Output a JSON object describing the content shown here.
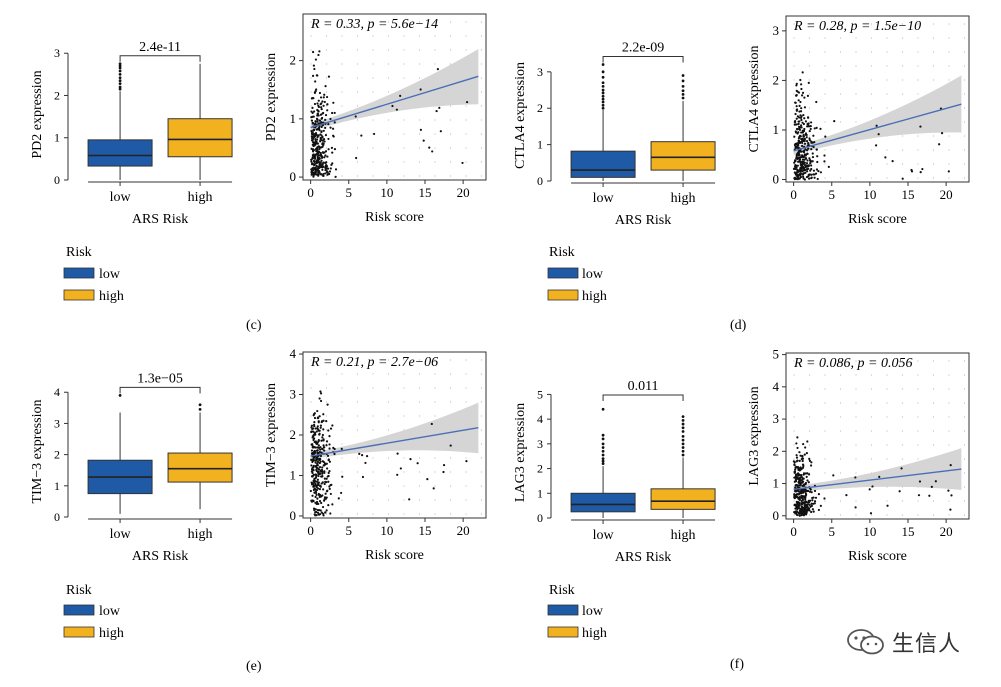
{
  "figure": {
    "panel_labels": {
      "c": "(c)",
      "d": "(d)",
      "e": "(e)",
      "f": "(f)"
    },
    "legend": {
      "title": "Risk",
      "items": [
        {
          "label": "low",
          "color": "#1f5aa6"
        },
        {
          "label": "high",
          "color": "#f2b21f"
        }
      ]
    },
    "watermark": "生信人"
  },
  "chart_data": [
    {
      "id": "c-box",
      "type": "box",
      "ylabel": "PD2 expression",
      "xlabel": "ARS Risk",
      "categories": [
        "low",
        "high"
      ],
      "pvalue": "2.4e-11",
      "ylim": [
        0,
        3.1
      ],
      "yticks": [
        0,
        1,
        2,
        3
      ],
      "boxes": [
        {
          "name": "low",
          "min": 0.0,
          "q1": 0.33,
          "median": 0.58,
          "q3": 0.95,
          "max": 2.1,
          "outliers": [
            2.15,
            2.2,
            2.28,
            2.35,
            2.42,
            2.5,
            2.58,
            2.65,
            2.7,
            2.75
          ],
          "color": "#1f5aa6"
        },
        {
          "name": "high",
          "min": 0.0,
          "q1": 0.55,
          "median": 0.96,
          "q3": 1.45,
          "max": 2.75,
          "outliers": [],
          "color": "#f2b21f"
        }
      ]
    },
    {
      "id": "c-scatter",
      "type": "scatter",
      "ylabel": "PD2 expression",
      "xlabel": "Risk score",
      "annotation": "R = 0.33, p = 5.6e−14",
      "xlim": [
        -1,
        23
      ],
      "ylim": [
        -0.05,
        2.8
      ],
      "xticks": [
        0,
        5,
        10,
        15,
        20
      ],
      "yticks": [
        0,
        1,
        2
      ],
      "fit": {
        "x0": 0,
        "y0": 0.85,
        "x1": 22,
        "y1": 1.73,
        "band_lo_end": 1.25,
        "band_hi_end": 2.2,
        "band_start": 0.06
      },
      "seed": 11,
      "cluster": {
        "n": 360,
        "ymean": 0.55,
        "ysd": 0.55,
        "ymax": 2.7
      }
    },
    {
      "id": "d-box",
      "type": "box",
      "ylabel": "CTLA4 expression",
      "xlabel": "ARS Risk",
      "categories": [
        "low",
        "high"
      ],
      "pvalue": "2.2e-09",
      "ylim": [
        0,
        3.6
      ],
      "yticks": [
        0,
        1,
        2,
        3
      ],
      "boxes": [
        {
          "name": "low",
          "min": 0.0,
          "q1": 0.1,
          "median": 0.3,
          "q3": 0.82,
          "max": 1.95,
          "outliers": [
            2.0,
            2.08,
            2.17,
            2.25,
            2.33,
            2.42,
            2.5,
            2.6,
            2.7,
            2.85,
            3.0,
            3.2
          ],
          "color": "#1f5aa6"
        },
        {
          "name": "high",
          "min": 0.0,
          "q1": 0.3,
          "median": 0.65,
          "q3": 1.08,
          "max": 2.2,
          "outliers": [
            2.28,
            2.38,
            2.48,
            2.6,
            2.75,
            2.9
          ],
          "color": "#f2b21f"
        }
      ]
    },
    {
      "id": "d-scatter",
      "type": "scatter",
      "ylabel": "CTLA4 expression",
      "xlabel": "Risk score",
      "annotation": "R = 0.28, p = 1.5e−10",
      "xlim": [
        -1,
        23
      ],
      "ylim": [
        -0.05,
        3.3
      ],
      "xticks": [
        0,
        5,
        10,
        15,
        20
      ],
      "yticks": [
        0,
        1,
        2,
        3
      ],
      "fit": {
        "x0": 0,
        "y0": 0.58,
        "x1": 22,
        "y1": 1.52,
        "band_lo_end": 0.95,
        "band_hi_end": 2.1,
        "band_start": 0.08
      },
      "seed": 23,
      "cluster": {
        "n": 340,
        "ymean": 0.45,
        "ysd": 0.6,
        "ymax": 3.05
      }
    },
    {
      "id": "e-box",
      "type": "box",
      "ylabel": "TIM−3 expression",
      "xlabel": "ARS Risk",
      "categories": [
        "low",
        "high"
      ],
      "pvalue": "1.3e−05",
      "ylim": [
        0,
        4.2
      ],
      "yticks": [
        0,
        1,
        2,
        3,
        4
      ],
      "boxes": [
        {
          "name": "low",
          "min": 0.1,
          "q1": 0.75,
          "median": 1.28,
          "q3": 1.82,
          "max": 3.35,
          "outliers": [
            3.9
          ],
          "color": "#1f5aa6"
        },
        {
          "name": "high",
          "min": 0.25,
          "q1": 1.12,
          "median": 1.55,
          "q3": 2.05,
          "max": 3.35,
          "outliers": [
            3.45,
            3.6
          ],
          "color": "#f2b21f"
        }
      ]
    },
    {
      "id": "e-scatter",
      "type": "scatter",
      "ylabel": "TIM−3 expression",
      "xlabel": "Risk score",
      "annotation": "R = 0.21, p = 2.7e−06",
      "xlim": [
        -1,
        23
      ],
      "ylim": [
        -0.05,
        4.05
      ],
      "xticks": [
        0,
        5,
        10,
        15,
        20
      ],
      "yticks": [
        0,
        1,
        2,
        3,
        4
      ],
      "fit": {
        "x0": 0,
        "y0": 1.48,
        "x1": 22,
        "y1": 2.18,
        "band_lo_end": 1.55,
        "band_hi_end": 2.8,
        "band_start": 0.08
      },
      "seed": 37,
      "cluster": {
        "n": 340,
        "ymean": 1.3,
        "ysd": 0.7,
        "ymax": 3.4
      }
    },
    {
      "id": "f-box",
      "type": "box",
      "ylabel": "LAG3 expression",
      "xlabel": "ARS Risk",
      "categories": [
        "low",
        "high"
      ],
      "pvalue": "0.011",
      "ylim": [
        0,
        5.3
      ],
      "yticks": [
        0,
        1,
        2,
        3,
        4,
        5
      ],
      "boxes": [
        {
          "name": "low",
          "min": 0.0,
          "q1": 0.25,
          "median": 0.55,
          "q3": 1.0,
          "max": 2.1,
          "outliers": [
            2.2,
            2.3,
            2.4,
            2.55,
            2.7,
            2.85,
            3.0,
            3.2,
            3.35,
            4.4
          ],
          "color": "#1f5aa6"
        },
        {
          "name": "high",
          "min": 0.0,
          "q1": 0.35,
          "median": 0.68,
          "q3": 1.18,
          "max": 2.45,
          "outliers": [
            2.55,
            2.7,
            2.85,
            3.0,
            3.15,
            3.3,
            3.5,
            3.65,
            3.8,
            3.95,
            4.1
          ],
          "color": "#f2b21f"
        }
      ]
    },
    {
      "id": "f-scatter",
      "type": "scatter",
      "ylabel": "LAG3 expression",
      "xlabel": "Risk score",
      "annotation": "R = 0.086, p = 0.056",
      "xlim": [
        -1,
        23
      ],
      "ylim": [
        -0.1,
        5.05
      ],
      "xticks": [
        0,
        5,
        10,
        15,
        20
      ],
      "yticks": [
        0,
        1,
        2,
        3,
        4,
        5
      ],
      "fit": {
        "x0": 0,
        "y0": 0.82,
        "x1": 22,
        "y1": 1.45,
        "band_lo_end": 0.8,
        "band_hi_end": 2.1,
        "band_start": 0.1
      },
      "seed": 53,
      "cluster": {
        "n": 330,
        "ymean": 0.6,
        "ysd": 0.7,
        "ymax": 4.6
      }
    }
  ]
}
